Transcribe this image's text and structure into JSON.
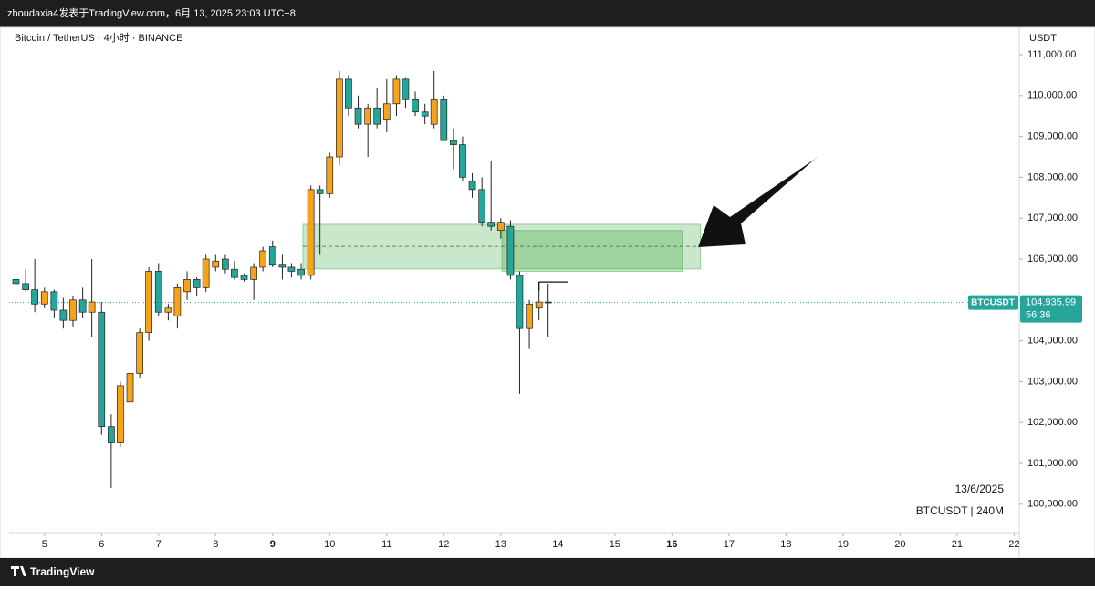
{
  "header": {
    "caption": "zhoudaxia4发表于TradingView.com，6月 13, 2025 23:03 UTC+8"
  },
  "chart_data": {
    "type": "candlestick",
    "symbol_title": "Bitcoin / TetherUS · 4小时 · BINANCE",
    "currency": "USDT",
    "up_color": "#f5a31b",
    "down_color": "#26a69a",
    "x": [
      4.5,
      4.67,
      4.83,
      5,
      5.17,
      5.33,
      5.5,
      5.67,
      5.83,
      6,
      6.17,
      6.33,
      6.5,
      6.67,
      6.83,
      7,
      7.17,
      7.33,
      7.5,
      7.67,
      7.83,
      8,
      8.17,
      8.33,
      8.5,
      8.67,
      8.83,
      9,
      9.17,
      9.33,
      9.5,
      9.67,
      9.83,
      10,
      10.17,
      10.33,
      10.5,
      10.67,
      10.83,
      11,
      11.17,
      11.33,
      11.5,
      11.67,
      11.83,
      12,
      12.17,
      12.33,
      12.5,
      12.67,
      12.83,
      13,
      13.17,
      13.33,
      13.5,
      13.67,
      13.83
    ],
    "open": [
      105500,
      105400,
      105250,
      104900,
      105200,
      104750,
      104500,
      105000,
      104700,
      104700,
      101900,
      101500,
      102500,
      103200,
      104200,
      105700,
      104700,
      104600,
      105200,
      105500,
      105300,
      105800,
      106000,
      105750,
      105600,
      105500,
      105800,
      106300,
      105850,
      105800,
      105750,
      105600,
      107700,
      107600,
      108500,
      110400,
      109700,
      109300,
      109700,
      109400,
      109800,
      110400,
      109900,
      109600,
      109300,
      109900,
      108900,
      108800,
      107900,
      107700,
      106900,
      106700,
      106800,
      105600,
      104300,
      104800,
      104950
    ],
    "high": [
      105650,
      105750,
      106000,
      105300,
      105250,
      105050,
      105100,
      105300,
      106000,
      104950,
      102200,
      103000,
      103300,
      104300,
      105800,
      105900,
      104900,
      105400,
      105700,
      105550,
      106100,
      106100,
      106100,
      105950,
      105650,
      105900,
      106300,
      106450,
      106100,
      105900,
      105900,
      107800,
      107800,
      108600,
      110600,
      110500,
      110000,
      109800,
      110200,
      110400,
      110500,
      110450,
      110100,
      109800,
      110600,
      110000,
      109200,
      109000,
      108100,
      108000,
      108400,
      107000,
      106950,
      105700,
      105000,
      105450,
      105400
    ],
    "low": [
      105350,
      105200,
      104700,
      104800,
      104550,
      104300,
      104350,
      104550,
      104100,
      101700,
      100400,
      101400,
      102400,
      103100,
      104000,
      104600,
      104500,
      104300,
      105000,
      105100,
      105200,
      105700,
      105650,
      105500,
      105450,
      105000,
      105700,
      105800,
      105500,
      105550,
      105500,
      105500,
      106100,
      107500,
      108300,
      109500,
      109200,
      108500,
      109200,
      109100,
      109500,
      109700,
      109500,
      109300,
      109200,
      108900,
      108200,
      107900,
      107500,
      106800,
      106700,
      106500,
      105500,
      102700,
      103800,
      104500,
      104100
    ],
    "close": [
      105400,
      105250,
      104900,
      105200,
      104750,
      104500,
      105000,
      104700,
      104950,
      101900,
      101500,
      102900,
      103200,
      104200,
      105700,
      104700,
      104800,
      105300,
      105500,
      105300,
      106000,
      105950,
      105750,
      105550,
      105500,
      105800,
      106200,
      105850,
      105800,
      105700,
      105600,
      107700,
      107600,
      108500,
      110400,
      109700,
      109300,
      109700,
      109300,
      109800,
      110400,
      109900,
      109600,
      109500,
      109900,
      108900,
      108800,
      108000,
      107700,
      106900,
      106800,
      106900,
      105600,
      104300,
      104900,
      104950,
      104935.99
    ],
    "zones": [
      {
        "x": [
          9.53,
          16.5
        ],
        "y": [
          106850,
          105760
        ]
      },
      {
        "x": [
          13.02,
          16.18
        ],
        "y": [
          106700,
          105700
        ]
      }
    ],
    "midline": 106310,
    "level": {
      "x": [
        13.67,
        14.18
      ],
      "y": 105440
    },
    "last_price": 104935.99,
    "last_price_label": "104,935.99",
    "countdown": "56:36",
    "symbol": "BTCUSDT",
    "date_label": "13/6/2025",
    "interval_label": "BTCUSDT | 240M",
    "xlim": [
      4.38,
      22.09
    ],
    "ylim": [
      98723,
      111670
    ],
    "xticks": [
      5,
      6,
      7,
      8,
      9,
      10,
      11,
      12,
      13,
      14,
      15,
      16,
      17,
      18,
      19,
      20,
      21,
      22
    ],
    "bold_xticks": [
      9,
      16
    ],
    "yticks": [
      {
        "value": 100000,
        "label": "100,000.00"
      },
      {
        "value": 101000,
        "label": "101,000.00"
      },
      {
        "value": 102000,
        "label": "102,000.00"
      },
      {
        "value": 103000,
        "label": "103,000.00"
      },
      {
        "value": 104000,
        "label": "104,000.00"
      },
      {
        "value": 105000,
        "label": "105,000.00"
      },
      {
        "value": 106000,
        "label": "106,000.00"
      },
      {
        "value": 107000,
        "label": "107,000.00"
      },
      {
        "value": 108000,
        "label": "108,000.00"
      },
      {
        "value": 109000,
        "label": "109,000.00"
      },
      {
        "value": 110000,
        "label": "110,000.00"
      },
      {
        "value": 111000,
        "label": "111,000.00"
      }
    ]
  },
  "footer": {
    "brand": "TradingView"
  }
}
